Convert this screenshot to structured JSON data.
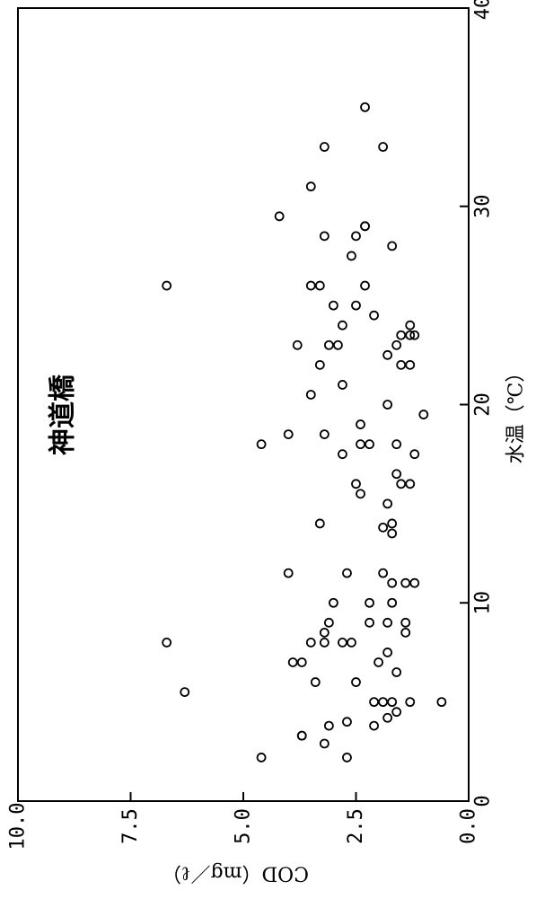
{
  "chart_data": {
    "type": "scatter",
    "title": "神道橋",
    "xlabel": "水温（℃）",
    "ylabel": "COD（mg／ℓ）",
    "xlim": [
      0,
      40
    ],
    "ylim": [
      0,
      10
    ],
    "x_ticks": [
      "0",
      "10",
      "20",
      "30",
      "40"
    ],
    "y_ticks": [
      "0.0",
      "2.5",
      "5.0",
      "7.5",
      "10.0"
    ],
    "grid": false,
    "legend": "none",
    "marker": "open-circle",
    "color": "#000000",
    "points": [
      [
        2.2,
        4.6
      ],
      [
        2.2,
        2.7
      ],
      [
        2.9,
        3.2
      ],
      [
        3.3,
        3.7
      ],
      [
        3.3,
        3.7
      ],
      [
        3.8,
        3.1
      ],
      [
        3.8,
        2.1
      ],
      [
        4.0,
        2.7
      ],
      [
        4.2,
        1.8
      ],
      [
        4.5,
        1.6
      ],
      [
        5.0,
        1.3
      ],
      [
        5.0,
        1.9
      ],
      [
        5.0,
        2.1
      ],
      [
        5.0,
        1.7
      ],
      [
        5.0,
        0.6
      ],
      [
        5.5,
        6.3
      ],
      [
        6.0,
        2.5
      ],
      [
        6.0,
        3.4
      ],
      [
        6.5,
        1.6
      ],
      [
        7.0,
        3.7
      ],
      [
        7.0,
        3.9
      ],
      [
        7.0,
        2.0
      ],
      [
        7.5,
        1.8
      ],
      [
        8.0,
        6.7
      ],
      [
        8.0,
        3.5
      ],
      [
        8.0,
        2.6
      ],
      [
        8.0,
        2.8
      ],
      [
        8.0,
        3.2
      ],
      [
        8.5,
        1.4
      ],
      [
        8.5,
        3.2
      ],
      [
        9.0,
        1.4
      ],
      [
        9.0,
        2.2
      ],
      [
        9.0,
        3.1
      ],
      [
        9.0,
        1.8
      ],
      [
        10.0,
        3.0
      ],
      [
        10.0,
        2.2
      ],
      [
        10.0,
        1.7
      ],
      [
        11.0,
        1.7
      ],
      [
        11.0,
        1.4
      ],
      [
        11.0,
        1.2
      ],
      [
        11.5,
        4.0
      ],
      [
        11.5,
        2.7
      ],
      [
        11.5,
        1.9
      ],
      [
        13.5,
        1.7
      ],
      [
        13.8,
        1.9
      ],
      [
        14.0,
        1.7
      ],
      [
        14.0,
        3.3
      ],
      [
        15.0,
        1.8
      ],
      [
        15.5,
        2.4
      ],
      [
        16.0,
        2.5
      ],
      [
        16.0,
        1.5
      ],
      [
        16.0,
        1.3
      ],
      [
        16.5,
        1.6
      ],
      [
        17.5,
        2.8
      ],
      [
        17.5,
        1.2
      ],
      [
        18.0,
        2.2
      ],
      [
        18.0,
        4.6
      ],
      [
        18.0,
        2.4
      ],
      [
        18.0,
        1.6
      ],
      [
        18.5,
        4.0
      ],
      [
        18.5,
        3.2
      ],
      [
        19.0,
        2.4
      ],
      [
        19.5,
        1.0
      ],
      [
        20.0,
        1.8
      ],
      [
        20.5,
        3.5
      ],
      [
        21.0,
        2.8
      ],
      [
        22.0,
        3.3
      ],
      [
        22.0,
        1.5
      ],
      [
        22.0,
        1.3
      ],
      [
        22.5,
        1.8
      ],
      [
        23.0,
        3.8
      ],
      [
        23.0,
        3.1
      ],
      [
        23.0,
        2.9
      ],
      [
        23.0,
        1.6
      ],
      [
        23.5,
        1.5
      ],
      [
        23.5,
        1.3
      ],
      [
        23.5,
        1.2
      ],
      [
        24.0,
        1.3
      ],
      [
        24.0,
        2.8
      ],
      [
        24.5,
        2.1
      ],
      [
        25.0,
        2.5
      ],
      [
        25.0,
        3.0
      ],
      [
        26.0,
        2.3
      ],
      [
        26.0,
        3.3
      ],
      [
        26.0,
        3.5
      ],
      [
        26.0,
        6.7
      ],
      [
        27.5,
        2.6
      ],
      [
        28.0,
        1.7
      ],
      [
        28.5,
        3.2
      ],
      [
        28.5,
        2.5
      ],
      [
        29.0,
        2.3
      ],
      [
        29.0,
        2.3
      ],
      [
        29.5,
        4.2
      ],
      [
        31.0,
        3.5
      ],
      [
        33.0,
        3.2
      ],
      [
        33.0,
        1.9
      ],
      [
        35.0,
        2.3
      ]
    ]
  }
}
